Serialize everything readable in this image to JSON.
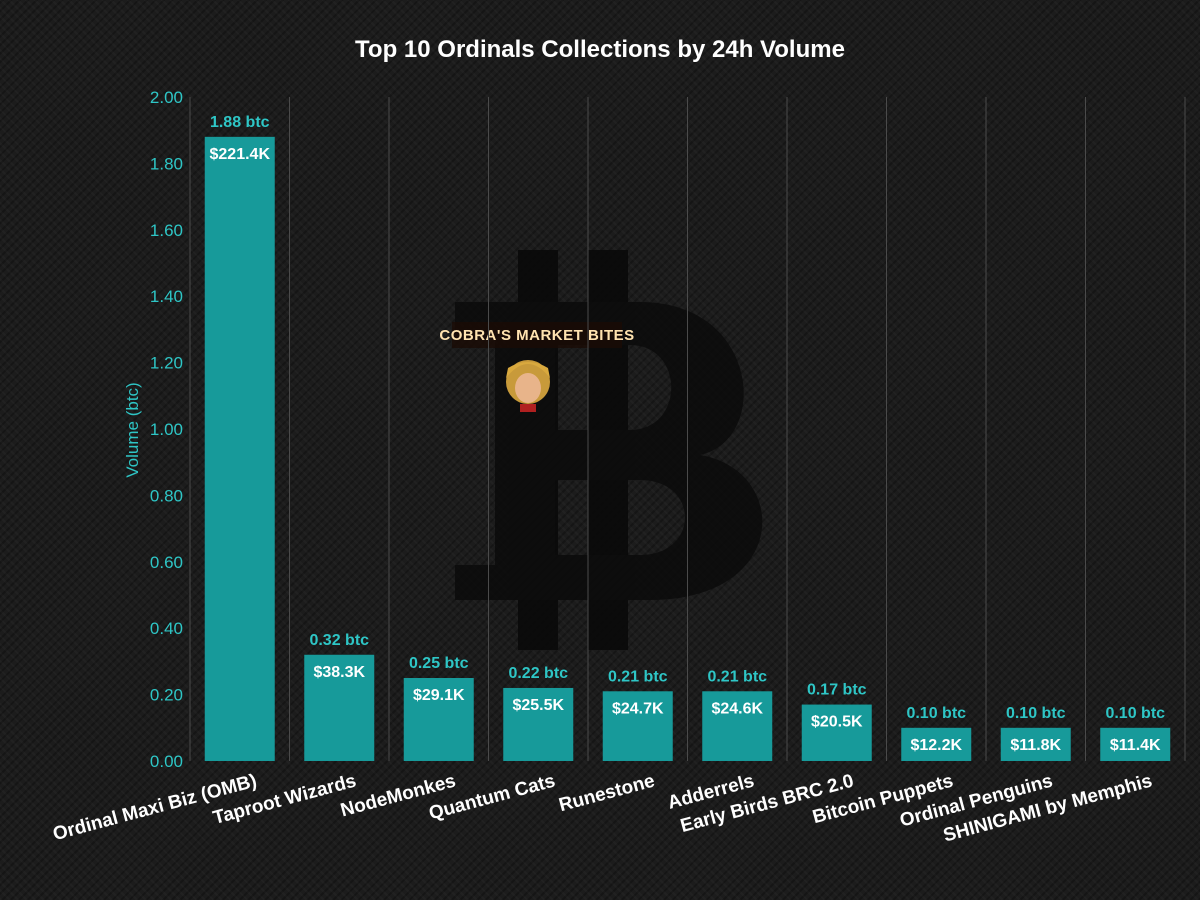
{
  "chart_data": {
    "type": "bar",
    "title": "Top 10 Ordinals Collections by 24h Volume",
    "xlabel": "",
    "ylabel": "Volume (btc)",
    "ylim": [
      0,
      2.0
    ],
    "yticks": [
      "0.00",
      "0.20",
      "0.40",
      "0.60",
      "0.80",
      "1.00",
      "1.20",
      "1.40",
      "1.60",
      "1.80",
      "2.00"
    ],
    "grid": "vertical",
    "categories": [
      "Ordinal Maxi Biz (OMB)",
      "Taproot Wizards",
      "NodeMonkes",
      "Quantum Cats",
      "Runestone",
      "Adderrels",
      "Early Birds BRC 2.0",
      "Bitcoin Puppets",
      "Ordinal Penguins",
      "SHINIGAMI by Memphis"
    ],
    "values": [
      1.88,
      0.32,
      0.25,
      0.22,
      0.21,
      0.21,
      0.17,
      0.1,
      0.1,
      0.1
    ],
    "value_labels": [
      "1.88 btc",
      "0.32 btc",
      "0.25 btc",
      "0.22 btc",
      "0.21 btc",
      "0.21 btc",
      "0.17 btc",
      "0.10 btc",
      "0.10 btc",
      "0.10 btc"
    ],
    "usd_labels": [
      "$221.4K",
      "$38.3K",
      "$29.1K",
      "$25.5K",
      "$24.7K",
      "$24.6K",
      "$20.5K",
      "$12.2K",
      "$11.8K",
      "$11.4K"
    ],
    "bar_color": "#179a9a",
    "label_color": "#2ec6c6"
  },
  "watermark": {
    "brand_text": "COBRA'S MARKET BITES",
    "icon": "bitcoin-logo-icon",
    "avatar_icon": "cartoon-avatar-icon"
  }
}
